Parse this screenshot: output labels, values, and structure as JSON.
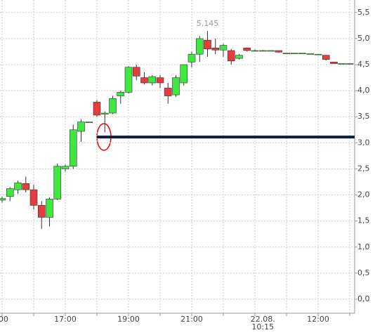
{
  "chart_data": {
    "type": "candlestick",
    "categories": [
      ":00",
      null,
      null,
      null,
      null,
      null,
      null,
      null,
      "17:00",
      null,
      null,
      null,
      null,
      null,
      null,
      null,
      "19:00",
      null,
      null,
      null,
      null,
      null,
      null,
      null,
      "21:00",
      null,
      null,
      null,
      null,
      null,
      null,
      null,
      null,
      "22.08.\n10:15",
      null,
      null,
      null,
      null,
      null,
      null,
      "12:00",
      null,
      null,
      null,
      null
    ],
    "series": {
      "open": [
        1.9,
        1.97,
        2.1,
        2.22,
        2.1,
        1.8,
        1.57,
        1.92,
        2.5,
        2.55,
        3.22,
        3.4,
        3.78,
        3.55,
        3.57,
        3.9,
        3.97,
        4.45,
        4.25,
        4.15,
        4.25,
        4.05,
        3.92,
        4.15,
        4.55,
        4.7,
        4.97,
        4.82,
        4.78,
        4.77,
        4.62,
        4.82,
        4.77,
        4.77,
        4.77,
        4.77,
        4.72,
        4.72,
        4.72,
        4.71,
        4.7,
        4.68,
        4.55,
        4.52,
        4.52
      ],
      "high": [
        1.97,
        2.15,
        2.27,
        2.35,
        2.2,
        1.88,
        1.95,
        2.6,
        2.58,
        3.35,
        3.45,
        3.4,
        3.82,
        3.6,
        3.9,
        4.0,
        4.47,
        4.5,
        4.35,
        4.3,
        4.3,
        4.15,
        4.3,
        4.5,
        4.75,
        5.05,
        5.145,
        5.0,
        4.9,
        4.8,
        4.7,
        4.83,
        4.79,
        4.78,
        4.77,
        4.77,
        4.72,
        4.72,
        4.72,
        4.71,
        4.7,
        4.68,
        4.55,
        4.52,
        4.52
      ],
      "low": [
        1.85,
        1.88,
        2.02,
        2.05,
        1.72,
        1.35,
        1.4,
        1.9,
        2.45,
        2.5,
        3.02,
        3.4,
        3.5,
        3.2,
        3.55,
        3.75,
        3.95,
        4.2,
        4.12,
        4.1,
        4.05,
        3.75,
        3.88,
        4.1,
        4.45,
        4.55,
        4.65,
        4.7,
        4.65,
        4.5,
        4.6,
        4.75,
        4.76,
        4.77,
        4.77,
        4.73,
        4.72,
        4.72,
        4.72,
        4.71,
        4.7,
        4.58,
        4.52,
        4.52,
        4.52
      ],
      "close": [
        1.93,
        2.12,
        2.23,
        2.1,
        1.8,
        1.57,
        1.92,
        2.55,
        2.55,
        3.25,
        3.4,
        3.4,
        3.53,
        3.57,
        3.85,
        3.97,
        4.45,
        4.28,
        4.15,
        4.27,
        4.15,
        3.9,
        4.25,
        4.5,
        4.7,
        5.0,
        4.8,
        4.78,
        4.87,
        4.57,
        4.68,
        4.77,
        4.77,
        4.77,
        4.77,
        4.74,
        4.72,
        4.72,
        4.72,
        4.71,
        4.7,
        4.6,
        4.52,
        4.52,
        4.52
      ]
    },
    "up_color": "#3ee83e",
    "down_color": "#e53c3c",
    "annotation": {
      "index": 26,
      "value": 5.145,
      "label": "5,145"
    },
    "hline": {
      "value": 3.11,
      "color": "#0d1a4d"
    },
    "ylim": [
      -0.27,
      5.74
    ],
    "yticks": [
      {
        "value": 0,
        "label": "0,0"
      },
      {
        "value": 0.5,
        "label": "0,5"
      },
      {
        "value": 1,
        "label": "1,0"
      },
      {
        "value": 1.5,
        "label": "1,5"
      },
      {
        "value": 2,
        "label": "2,0"
      },
      {
        "value": 2.5,
        "label": "2,5"
      },
      {
        "value": 3,
        "label": "3,0"
      },
      {
        "value": 3.5,
        "label": "3,5"
      },
      {
        "value": 4,
        "label": "4,0"
      },
      {
        "value": 4.5,
        "label": "4,5"
      },
      {
        "value": 5,
        "label": "5,0"
      },
      {
        "value": 5.5,
        "label": "5,5"
      }
    ],
    "grid": true
  }
}
